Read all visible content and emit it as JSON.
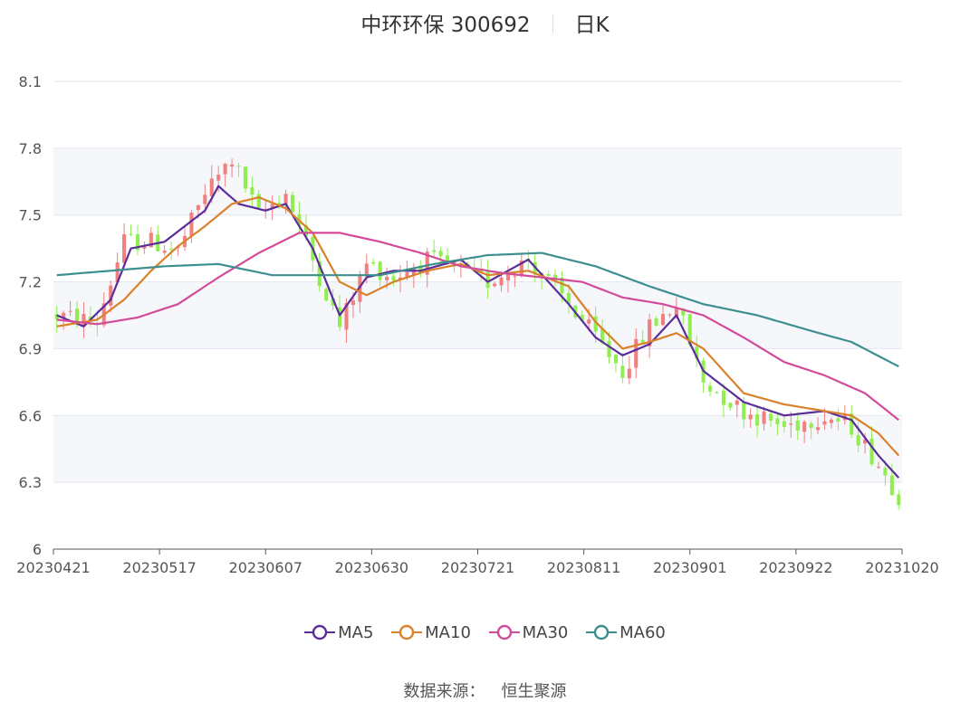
{
  "header": {
    "stock_name": "中环环保 300692",
    "period": "日K"
  },
  "source": {
    "label": "数据来源：",
    "name": "恒生聚源"
  },
  "colors": {
    "up": "#f08080",
    "down": "#90ee50",
    "ma5": "#5a2d9a",
    "ma10": "#d9822b",
    "ma30": "#d44a9a",
    "ma60": "#3d8f8f",
    "grid": "#e0e6ef",
    "band": "#f6f7fb"
  },
  "chart_data": {
    "type": "candlestick",
    "x_ticks": [
      "20230421",
      "20230517",
      "20230607",
      "20230630",
      "20230721",
      "20230811",
      "20230901",
      "20230922",
      "20231020"
    ],
    "y_ticks": [
      "6",
      "6.3",
      "6.6",
      "6.9",
      "7.2",
      "7.5",
      "7.8",
      "8.1"
    ],
    "ylim": [
      6,
      8.1
    ],
    "legend": [
      "MA5",
      "MA10",
      "MA30",
      "MA60"
    ],
    "legend_position": "bottom",
    "n_days": 126,
    "segments": [
      {
        "day": 0,
        "price": 7.05
      },
      {
        "day": 6,
        "price": 7.02
      },
      {
        "day": 10,
        "price": 7.38
      },
      {
        "day": 14,
        "price": 7.38
      },
      {
        "day": 18,
        "price": 7.34
      },
      {
        "day": 22,
        "price": 7.6
      },
      {
        "day": 26,
        "price": 7.75
      },
      {
        "day": 30,
        "price": 7.5
      },
      {
        "day": 34,
        "price": 7.6
      },
      {
        "day": 38,
        "price": 7.3
      },
      {
        "day": 42,
        "price": 7.0
      },
      {
        "day": 46,
        "price": 7.28
      },
      {
        "day": 50,
        "price": 7.22
      },
      {
        "day": 55,
        "price": 7.3
      },
      {
        "day": 60,
        "price": 7.25
      },
      {
        "day": 64,
        "price": 7.2
      },
      {
        "day": 70,
        "price": 7.3
      },
      {
        "day": 76,
        "price": 7.1
      },
      {
        "day": 80,
        "price": 6.95
      },
      {
        "day": 84,
        "price": 6.8
      },
      {
        "day": 88,
        "price": 7.0
      },
      {
        "day": 92,
        "price": 7.1
      },
      {
        "day": 96,
        "price": 6.75
      },
      {
        "day": 102,
        "price": 6.62
      },
      {
        "day": 108,
        "price": 6.55
      },
      {
        "day": 114,
        "price": 6.6
      },
      {
        "day": 118,
        "price": 6.55
      },
      {
        "day": 122,
        "price": 6.38
      },
      {
        "day": 125,
        "price": 6.24
      }
    ],
    "ma_series": {
      "MA5": [
        {
          "day": 0,
          "v": 7.05
        },
        {
          "day": 4,
          "v": 7.0
        },
        {
          "day": 8,
          "v": 7.12
        },
        {
          "day": 11,
          "v": 7.35
        },
        {
          "day": 16,
          "v": 7.38
        },
        {
          "day": 22,
          "v": 7.52
        },
        {
          "day": 24,
          "v": 7.63
        },
        {
          "day": 27,
          "v": 7.55
        },
        {
          "day": 31,
          "v": 7.52
        },
        {
          "day": 34,
          "v": 7.55
        },
        {
          "day": 38,
          "v": 7.35
        },
        {
          "day": 42,
          "v": 7.05
        },
        {
          "day": 46,
          "v": 7.22
        },
        {
          "day": 50,
          "v": 7.25
        },
        {
          "day": 54,
          "v": 7.25
        },
        {
          "day": 60,
          "v": 7.3
        },
        {
          "day": 64,
          "v": 7.2
        },
        {
          "day": 70,
          "v": 7.3
        },
        {
          "day": 76,
          "v": 7.1
        },
        {
          "day": 80,
          "v": 6.95
        },
        {
          "day": 84,
          "v": 6.87
        },
        {
          "day": 88,
          "v": 6.92
        },
        {
          "day": 92,
          "v": 7.05
        },
        {
          "day": 96,
          "v": 6.8
        },
        {
          "day": 102,
          "v": 6.66
        },
        {
          "day": 108,
          "v": 6.6
        },
        {
          "day": 114,
          "v": 6.62
        },
        {
          "day": 118,
          "v": 6.58
        },
        {
          "day": 122,
          "v": 6.42
        },
        {
          "day": 125,
          "v": 6.32
        }
      ],
      "MA10": [
        {
          "day": 0,
          "v": 7.0
        },
        {
          "day": 6,
          "v": 7.03
        },
        {
          "day": 10,
          "v": 7.12
        },
        {
          "day": 14,
          "v": 7.25
        },
        {
          "day": 18,
          "v": 7.36
        },
        {
          "day": 22,
          "v": 7.45
        },
        {
          "day": 26,
          "v": 7.55
        },
        {
          "day": 30,
          "v": 7.58
        },
        {
          "day": 34,
          "v": 7.53
        },
        {
          "day": 38,
          "v": 7.42
        },
        {
          "day": 42,
          "v": 7.2
        },
        {
          "day": 46,
          "v": 7.14
        },
        {
          "day": 50,
          "v": 7.2
        },
        {
          "day": 55,
          "v": 7.25
        },
        {
          "day": 60,
          "v": 7.28
        },
        {
          "day": 64,
          "v": 7.23
        },
        {
          "day": 70,
          "v": 7.25
        },
        {
          "day": 76,
          "v": 7.18
        },
        {
          "day": 80,
          "v": 7.02
        },
        {
          "day": 84,
          "v": 6.9
        },
        {
          "day": 88,
          "v": 6.93
        },
        {
          "day": 92,
          "v": 6.97
        },
        {
          "day": 96,
          "v": 6.9
        },
        {
          "day": 102,
          "v": 6.7
        },
        {
          "day": 108,
          "v": 6.65
        },
        {
          "day": 114,
          "v": 6.62
        },
        {
          "day": 118,
          "v": 6.6
        },
        {
          "day": 122,
          "v": 6.52
        },
        {
          "day": 125,
          "v": 6.42
        }
      ],
      "MA30": [
        {
          "day": 0,
          "v": 7.03
        },
        {
          "day": 6,
          "v": 7.01
        },
        {
          "day": 12,
          "v": 7.04
        },
        {
          "day": 18,
          "v": 7.1
        },
        {
          "day": 24,
          "v": 7.22
        },
        {
          "day": 30,
          "v": 7.33
        },
        {
          "day": 36,
          "v": 7.42
        },
        {
          "day": 42,
          "v": 7.42
        },
        {
          "day": 48,
          "v": 7.38
        },
        {
          "day": 54,
          "v": 7.33
        },
        {
          "day": 60,
          "v": 7.27
        },
        {
          "day": 66,
          "v": 7.24
        },
        {
          "day": 72,
          "v": 7.22
        },
        {
          "day": 78,
          "v": 7.2
        },
        {
          "day": 84,
          "v": 7.13
        },
        {
          "day": 90,
          "v": 7.1
        },
        {
          "day": 96,
          "v": 7.05
        },
        {
          "day": 102,
          "v": 6.95
        },
        {
          "day": 108,
          "v": 6.84
        },
        {
          "day": 114,
          "v": 6.78
        },
        {
          "day": 120,
          "v": 6.7
        },
        {
          "day": 125,
          "v": 6.58
        }
      ],
      "MA60": [
        {
          "day": 0,
          "v": 7.23
        },
        {
          "day": 8,
          "v": 7.25
        },
        {
          "day": 16,
          "v": 7.27
        },
        {
          "day": 24,
          "v": 7.28
        },
        {
          "day": 32,
          "v": 7.23
        },
        {
          "day": 40,
          "v": 7.23
        },
        {
          "day": 48,
          "v": 7.23
        },
        {
          "day": 56,
          "v": 7.28
        },
        {
          "day": 64,
          "v": 7.32
        },
        {
          "day": 72,
          "v": 7.33
        },
        {
          "day": 80,
          "v": 7.27
        },
        {
          "day": 88,
          "v": 7.18
        },
        {
          "day": 96,
          "v": 7.1
        },
        {
          "day": 104,
          "v": 7.05
        },
        {
          "day": 112,
          "v": 6.98
        },
        {
          "day": 118,
          "v": 6.93
        },
        {
          "day": 125,
          "v": 6.82
        }
      ]
    }
  }
}
